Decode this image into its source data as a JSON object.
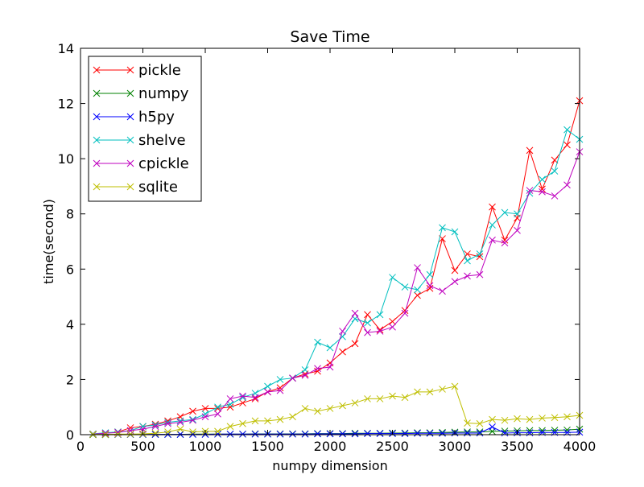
{
  "chart_data": {
    "type": "line",
    "title": "Save Time",
    "xlabel": "numpy dimension",
    "ylabel": "time(second)",
    "xlim": [
      0,
      4000
    ],
    "ylim": [
      0,
      14
    ],
    "xticks": [
      0,
      500,
      1000,
      1500,
      2000,
      2500,
      3000,
      3500,
      4000
    ],
    "yticks": [
      0,
      2,
      4,
      6,
      8,
      10,
      12,
      14
    ],
    "grid": false,
    "legend_position": "top-left",
    "marker": "x",
    "x": [
      100,
      200,
      300,
      400,
      500,
      600,
      700,
      800,
      900,
      1000,
      1100,
      1200,
      1300,
      1400,
      1500,
      1600,
      1700,
      1800,
      1900,
      2000,
      2100,
      2200,
      2300,
      2400,
      2500,
      2600,
      2700,
      2800,
      2900,
      3000,
      3100,
      3200,
      3300,
      3400,
      3500,
      3600,
      3700,
      3800,
      3900,
      4000
    ],
    "series": [
      {
        "name": "pickle",
        "color": "#ff0000",
        "values": [
          0.02,
          0.05,
          0.1,
          0.25,
          0.3,
          0.38,
          0.5,
          0.65,
          0.85,
          0.95,
          0.95,
          1.0,
          1.15,
          1.3,
          1.55,
          1.7,
          2.05,
          2.2,
          2.3,
          2.6,
          3.0,
          3.3,
          4.35,
          3.8,
          4.1,
          4.5,
          5.05,
          5.3,
          7.1,
          5.95,
          6.55,
          6.45,
          8.25,
          7.05,
          7.85,
          10.3,
          8.9,
          9.95,
          10.5,
          12.1
        ]
      },
      {
        "name": "numpy",
        "color": "#008000",
        "values": [
          0.0,
          0.0,
          0.01,
          0.01,
          0.01,
          0.01,
          0.01,
          0.01,
          0.02,
          0.02,
          0.02,
          0.02,
          0.02,
          0.03,
          0.03,
          0.03,
          0.03,
          0.03,
          0.04,
          0.04,
          0.04,
          0.05,
          0.05,
          0.05,
          0.06,
          0.06,
          0.07,
          0.07,
          0.08,
          0.09,
          0.1,
          0.1,
          0.12,
          0.13,
          0.14,
          0.15,
          0.15,
          0.16,
          0.17,
          0.2
        ]
      },
      {
        "name": "h5py",
        "color": "#0000ff",
        "values": [
          0.01,
          0.01,
          0.01,
          0.01,
          0.01,
          0.01,
          0.01,
          0.01,
          0.01,
          0.01,
          0.02,
          0.02,
          0.02,
          0.02,
          0.02,
          0.02,
          0.02,
          0.02,
          0.03,
          0.03,
          0.03,
          0.03,
          0.04,
          0.04,
          0.04,
          0.04,
          0.05,
          0.05,
          0.05,
          0.06,
          0.06,
          0.06,
          0.28,
          0.06,
          0.07,
          0.07,
          0.08,
          0.08,
          0.08,
          0.09
        ]
      },
      {
        "name": "shelve",
        "color": "#00bfbf",
        "values": [
          0.03,
          0.07,
          0.1,
          0.15,
          0.3,
          0.35,
          0.45,
          0.5,
          0.55,
          0.75,
          1.0,
          1.1,
          1.35,
          1.5,
          1.75,
          2.0,
          2.05,
          2.35,
          3.35,
          3.15,
          3.55,
          4.2,
          4.05,
          4.35,
          5.7,
          5.35,
          5.25,
          5.8,
          7.5,
          7.35,
          6.3,
          6.55,
          7.6,
          8.05,
          8.0,
          8.75,
          9.25,
          9.55,
          11.05,
          10.7
        ]
      },
      {
        "name": "cpickle",
        "color": "#bf00bf",
        "values": [
          0.02,
          0.05,
          0.08,
          0.15,
          0.2,
          0.3,
          0.4,
          0.45,
          0.52,
          0.65,
          0.75,
          1.3,
          1.4,
          1.35,
          1.55,
          1.6,
          2.05,
          2.15,
          2.4,
          2.45,
          3.75,
          4.4,
          3.7,
          3.75,
          3.9,
          4.4,
          6.05,
          5.4,
          5.2,
          5.55,
          5.75,
          5.8,
          7.05,
          6.95,
          7.4,
          8.85,
          8.8,
          8.65,
          9.05,
          10.25
        ]
      },
      {
        "name": "sqlite",
        "color": "#bfbf00",
        "values": [
          0.01,
          0.01,
          0.02,
          0.02,
          0.03,
          0.05,
          0.1,
          0.2,
          0.1,
          0.12,
          0.12,
          0.3,
          0.4,
          0.5,
          0.5,
          0.55,
          0.65,
          0.95,
          0.85,
          0.95,
          1.05,
          1.15,
          1.3,
          1.3,
          1.4,
          1.35,
          1.55,
          1.55,
          1.65,
          1.75,
          0.42,
          0.4,
          0.55,
          0.52,
          0.58,
          0.55,
          0.6,
          0.62,
          0.65,
          0.7
        ]
      }
    ]
  }
}
